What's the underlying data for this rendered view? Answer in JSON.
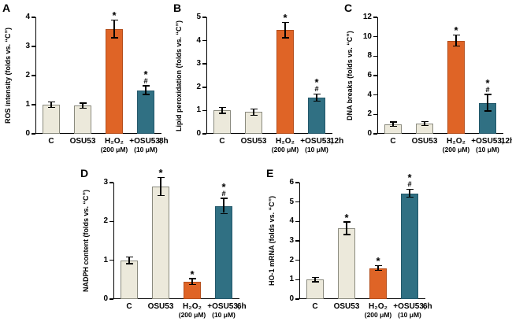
{
  "figure_title": "",
  "colors": {
    "beige": "#ECE9DB",
    "beige_border": "#8A8A7E",
    "orange": "#DF6426",
    "orange_border": "#B44E1C",
    "teal": "#307083",
    "teal_border": "#24586A",
    "axis": "#000000",
    "error_bar": "#000000"
  },
  "chart_data": [
    {
      "type": "bar",
      "panel_label": "A",
      "ylabel": "ROS intensity (folds vs. “C”)",
      "xlabel": "",
      "ylim": [
        0,
        4
      ],
      "yticks": [
        0,
        1,
        2,
        3,
        4
      ],
      "grid": false,
      "legend": null,
      "time_label": "8h",
      "categories": [
        "C",
        "OSU53",
        "H₂O₂",
        "+OSU53,"
      ],
      "category_subs": [
        "",
        "",
        "(200 μM)",
        "(10 μM)"
      ],
      "values": [
        1.0,
        0.97,
        3.6,
        1.5
      ],
      "errors": [
        0.07,
        0.07,
        0.28,
        0.13
      ],
      "sig": [
        "",
        "",
        "*",
        "*|#"
      ],
      "bar_colors": [
        "beige",
        "beige",
        "orange",
        "teal"
      ]
    },
    {
      "type": "bar",
      "panel_label": "B",
      "ylabel": "Lipid peroxidation (folds vs. “C”)",
      "xlabel": "",
      "ylim": [
        0,
        5
      ],
      "yticks": [
        0,
        1,
        2,
        3,
        4,
        5
      ],
      "grid": false,
      "legend": null,
      "time_label": "12h",
      "categories": [
        "C",
        "OSU53",
        "H₂O₂",
        "+OSU53,"
      ],
      "category_subs": [
        "",
        "",
        "(200 μM)",
        "(10 μM)"
      ],
      "values": [
        1.0,
        0.93,
        4.45,
        1.55
      ],
      "errors": [
        0.1,
        0.12,
        0.3,
        0.13
      ],
      "sig": [
        "",
        "",
        "*",
        "*|#"
      ],
      "bar_colors": [
        "beige",
        "beige",
        "orange",
        "teal"
      ]
    },
    {
      "type": "bar",
      "panel_label": "C",
      "ylabel": "DNA breaks (folds vs. “C”)",
      "xlabel": "",
      "ylim": [
        0,
        12
      ],
      "yticks": [
        0,
        2,
        4,
        6,
        8,
        10,
        12
      ],
      "grid": false,
      "legend": null,
      "time_label": "12h",
      "categories": [
        "C",
        "OSU53",
        "H₂O₂",
        "+OSU53,"
      ],
      "category_subs": [
        "",
        "",
        "(200 μM)",
        "(10 μM)"
      ],
      "values": [
        1.0,
        1.05,
        9.6,
        3.2
      ],
      "errors": [
        0.12,
        0.12,
        0.5,
        0.8
      ],
      "sig": [
        "",
        "",
        "*",
        "*|#"
      ],
      "bar_colors": [
        "beige",
        "beige",
        "orange",
        "teal"
      ]
    },
    {
      "type": "bar",
      "panel_label": "D",
      "ylabel": "NADPH content (folds vs. “C”)",
      "xlabel": "",
      "ylim": [
        0,
        3
      ],
      "yticks": [
        0,
        1,
        2,
        3
      ],
      "grid": false,
      "legend": null,
      "time_label": "6h",
      "categories": [
        "C",
        "OSU53",
        "H₂O₂",
        "+OSU53,"
      ],
      "category_subs": [
        "",
        "",
        "(200 μM)",
        "(10 μM)"
      ],
      "values": [
        1.0,
        2.9,
        0.45,
        2.4
      ],
      "errors": [
        0.07,
        0.22,
        0.06,
        0.18
      ],
      "sig": [
        "",
        "*",
        "*",
        "*|#"
      ],
      "bar_colors": [
        "beige",
        "beige",
        "orange",
        "teal"
      ]
    },
    {
      "type": "bar",
      "panel_label": "E",
      "ylabel": "HO-1 mRNA (folds vs. “C”)",
      "xlabel": "",
      "ylim": [
        0,
        6
      ],
      "yticks": [
        0,
        1,
        2,
        3,
        4,
        5,
        6
      ],
      "grid": false,
      "legend": null,
      "time_label": "6h",
      "categories": [
        "C",
        "OSU53",
        "H₂O₂",
        "+OSU53,"
      ],
      "category_subs": [
        "",
        "",
        "(200 μM)",
        "(10 μM)"
      ],
      "values": [
        1.0,
        3.65,
        1.6,
        5.45
      ],
      "errors": [
        0.06,
        0.3,
        0.1,
        0.18
      ],
      "sig": [
        "",
        "*",
        "*",
        "*|#"
      ],
      "bar_colors": [
        "beige",
        "beige",
        "orange",
        "teal"
      ]
    }
  ]
}
